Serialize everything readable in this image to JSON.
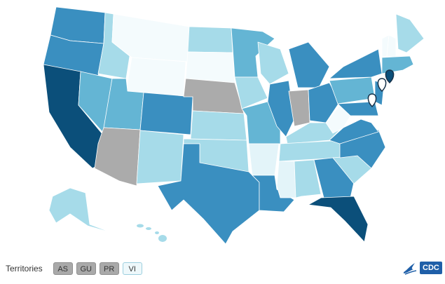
{
  "territories": {
    "label": "Territories",
    "items": [
      "AS",
      "GU",
      "PR",
      "VI"
    ]
  },
  "logo": {
    "text": "CDC"
  }
}
